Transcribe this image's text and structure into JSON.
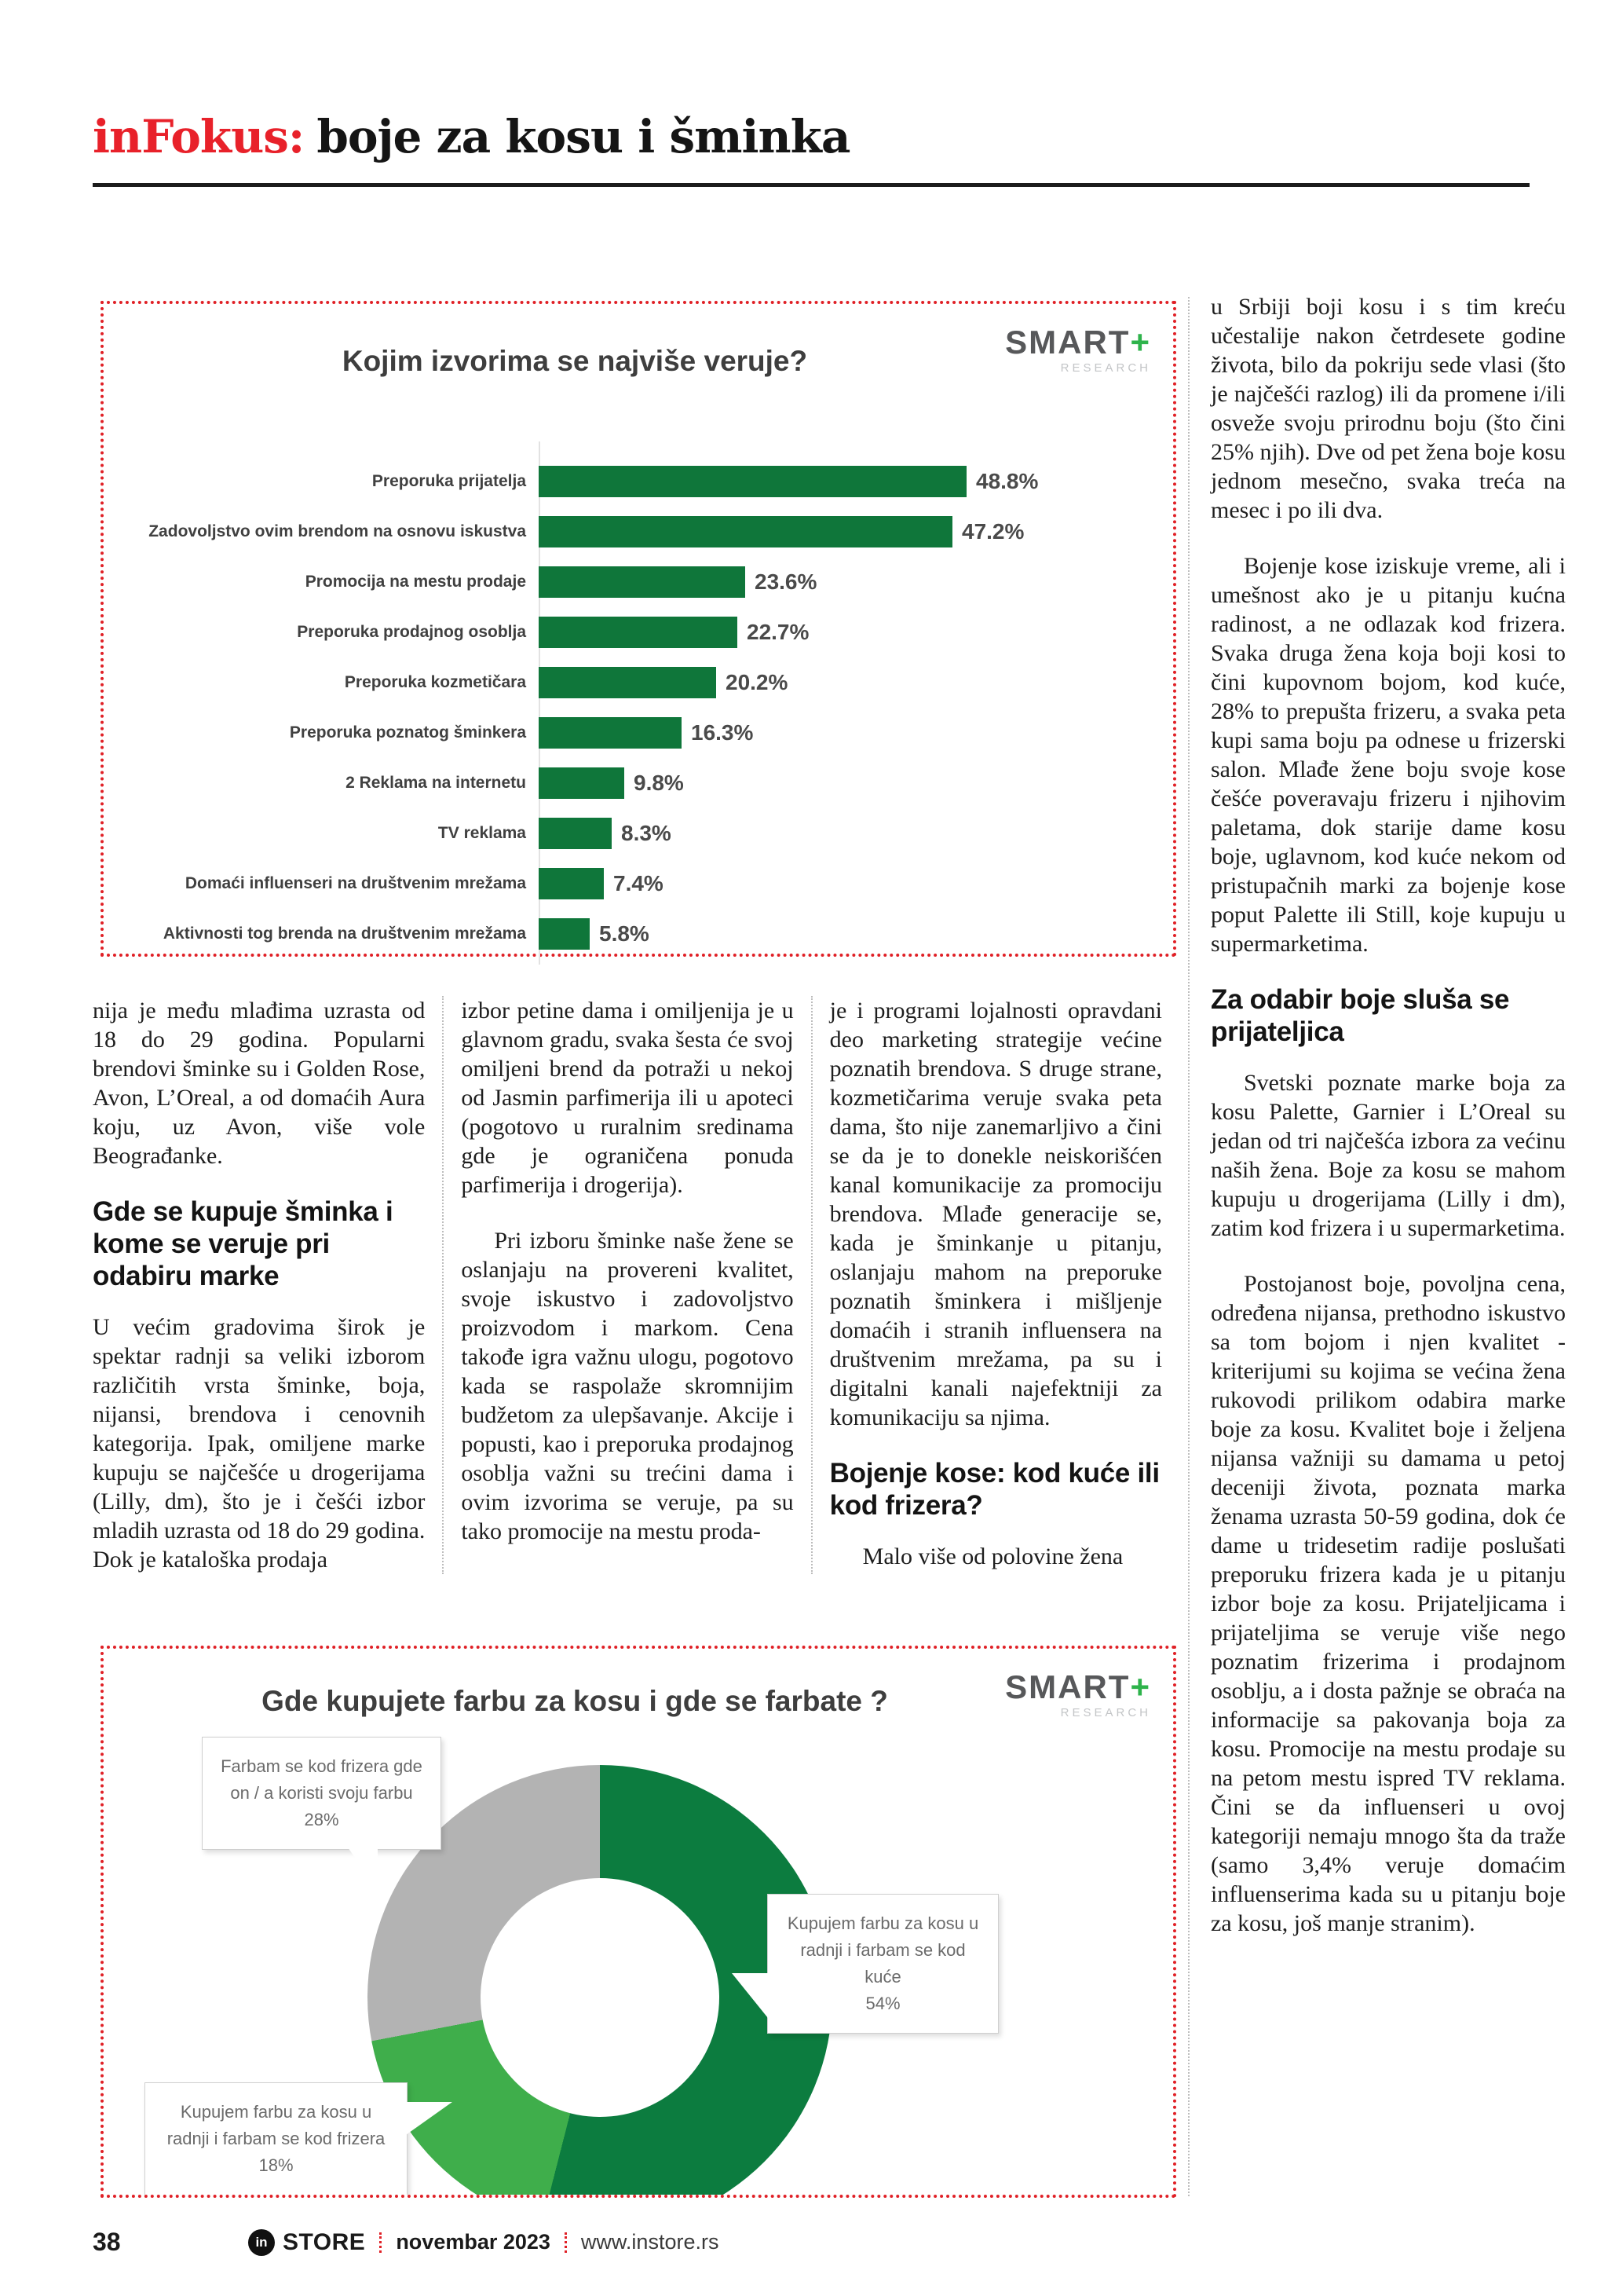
{
  "header": {
    "brand": "inFokus:",
    "title": "boje za kosu i šminka"
  },
  "logo": {
    "text": "SMART",
    "plus": "+",
    "sub": "RESEARCH"
  },
  "chart_data": [
    {
      "type": "bar",
      "orientation": "horizontal",
      "title": "Kojim izvorima se najviše veruje?",
      "categories": [
        "Preporuka prijatelja",
        "Zadovoljstvo ovim brendom na osnovu iskustva",
        "Promocija na mestu prodaje",
        "Preporuka prodajnog osoblja",
        "Preporuka kozmetičara",
        "Preporuka poznatog šminkera",
        "2 Reklama na internetu",
        "TV reklama",
        "Domaći influenseri na društvenim mrežama",
        "Aktivnosti tog brenda na društvenim mrežama"
      ],
      "values": [
        48.8,
        47.2,
        23.6,
        22.7,
        20.2,
        16.3,
        9.8,
        8.3,
        7.4,
        5.8
      ],
      "value_labels": [
        "48.8%",
        "47.2%",
        "23.6%",
        "22.7%",
        "20.2%",
        "16.3%",
        "9.8%",
        "8.3%",
        "7.4%",
        "5.8%"
      ],
      "xlim": [
        0,
        55
      ],
      "bar_color": "#0f763a",
      "grid": false,
      "legend": false
    },
    {
      "type": "pie",
      "donut": true,
      "title": "Gde kupujete farbu za kosu i gde se farbate ?",
      "start": "top",
      "direction": "clockwise",
      "segments": [
        {
          "label": "Kupujem farbu za kosu u radnji i farbam se kod kuće",
          "value": 54,
          "display": "54%",
          "color": "#0c7c3f"
        },
        {
          "label": "Kupujem farbu za kosu u radnji i farbam se kod frizera",
          "value": 18,
          "display": "18%",
          "color": "#3fae4b"
        },
        {
          "label": "Farbam se kod frizera gde on / a koristi svoju farbu",
          "value": 28,
          "display": "28%",
          "color": "#b3b3b3"
        }
      ]
    }
  ],
  "articles": {
    "col1": {
      "p1": "nija je među mlađima uzrasta od 18 do 29 godina. Popularni brendovi šminke su i Golden Rose, Avon, L’Oreal, a od domaćih Aura koju, uz Avon, više vole Beograđanke.",
      "h": "Gde se kupuje šminka i kome se veruje pri odabiru marke",
      "p2": "U većim gradovima širok je spektar radnji sa veliki izborom različitih vrsta šminke, boja, nijansi, brendova i cenovnih kategorija. Ipak, omiljene marke kupuju se najčešće u drogerijama (Lilly, dm), što je i češći izbor mladih uzrasta od 18 do 29 godina. Dok je kataloška prodaja"
    },
    "col2": {
      "p1": "izbor petine dama i omiljenija je u glavnom gradu, svaka šesta će svoj omiljeni brend da potraži u nekoj od Jasmin parfimerija ili u apoteci (pogotovo u ruralnim sredinama gde je ograničena ponuda parfimerija i drogerija).",
      "p2": "Pri izboru šminke naše žene se oslanjaju na provereni kvalitet, svoje iskustvo i zadovoljstvo proizvodom i markom. Cena takođe igra važnu ulogu, pogotovo kada se raspolaže skromnijim budžetom za ulepšavanje. Akcije i popusti, kao i preporuka prodajnog osoblja važni su trećini dama i ovim izvorima se veruje, pa su tako promocije na mestu proda-"
    },
    "col3": {
      "p1": "je i programi lojalnosti opravdani deo marketing strategije većine poznatih brendova. S druge strane, kozmetičarima veruje svaka peta dama, što nije zanemarljivo a čini se da je to donekle neiskorišćen kanal komunikacije za promociju brendova. Mlađe generacije se, kada je šminkanje u pitanju, oslanjaju mahom na preporuke poznatih šminkera i mišljenje domaćih i stranih influensera na društvenim mrežama, pa su i digitalni kanali najefektniji za komunikaciju sa njima.",
      "h": "Bojenje kose: kod kuće ili kod frizera?",
      "p2": "Malo više od polovine žena"
    },
    "right": {
      "p1": "u Srbiji boji kosu i s tim kreću učestalije nakon četrdesete godine života, bilo da pokriju sede vlasi (što je najčešći razlog) ili da promene i/ili osveže svoju prirodnu boju (što čini 25% njih). Dve od pet žena boje kosu jednom mesečno, svaka treća na mesec i po ili dva.",
      "p2": "Bojenje kose iziskuje vreme, ali i umešnost ako je u pitanju kućna radinost, a ne odlazak kod frizera. Svaka druga žena koja boji kosi to čini kupovnom bojom, kod kuće, 28% to prepušta frizeru, a svaka peta kupi sama boju pa odnese u frizerski salon. Mlađe žene boju svoje kose češće poveravaju frizeru i njihovim paletama, dok starije dame kosu boje, uglavnom, kod kuće nekom od pristupačnih marki za bojenje kose poput Palette ili Still, koje kupuju u supermarketima.",
      "h": "Za odabir boje sluša se prijateljica",
      "p3": "Svetski poznate marke boja za kosu Palette, Garnier i L’Oreal su jedan od tri najčešća izbora za većinu naših žena. Boje za kosu se mahom kupuju u drogerijama (Lilly i dm), zatim kod frizera i u supermarketima.",
      "p4": "Postojanost boje, povoljna cena, određena nijansa, prethodno iskustvo sa tom bojom i njen kvalitet - kriterijumi su kojima se većina žena rukovodi prilikom odabira marke boje za kosu. Kvalitet boje i željena nijansa važniji su damama u petoj deceniji života, poznata marka ženama uzrasta 50-59 godina, dok će dame u tridesetim radije poslušati preporuku frizera kada je u pitanju izbor boje za kosu. Prijateljicama i prijateljima se veruje više nego poznatim frizerima i prodajnom osoblju, a i dosta pažnje se obraća na informacije sa pakovanja boja za kosu. Promocije na mestu prodaje su na petom mestu ispred TV reklama. Čini se da influenseri u ovoj kategoriji nemaju mnogo šta da traže (samo 3,4% veruje domaćim influenserima kada su u pitanju boje za kosu, još manje stranim)."
    }
  },
  "footer": {
    "page_number": "38",
    "brand_mark": "in",
    "brand": "STORE",
    "issue": "novembar 2023",
    "website": "www.instore.rs"
  }
}
